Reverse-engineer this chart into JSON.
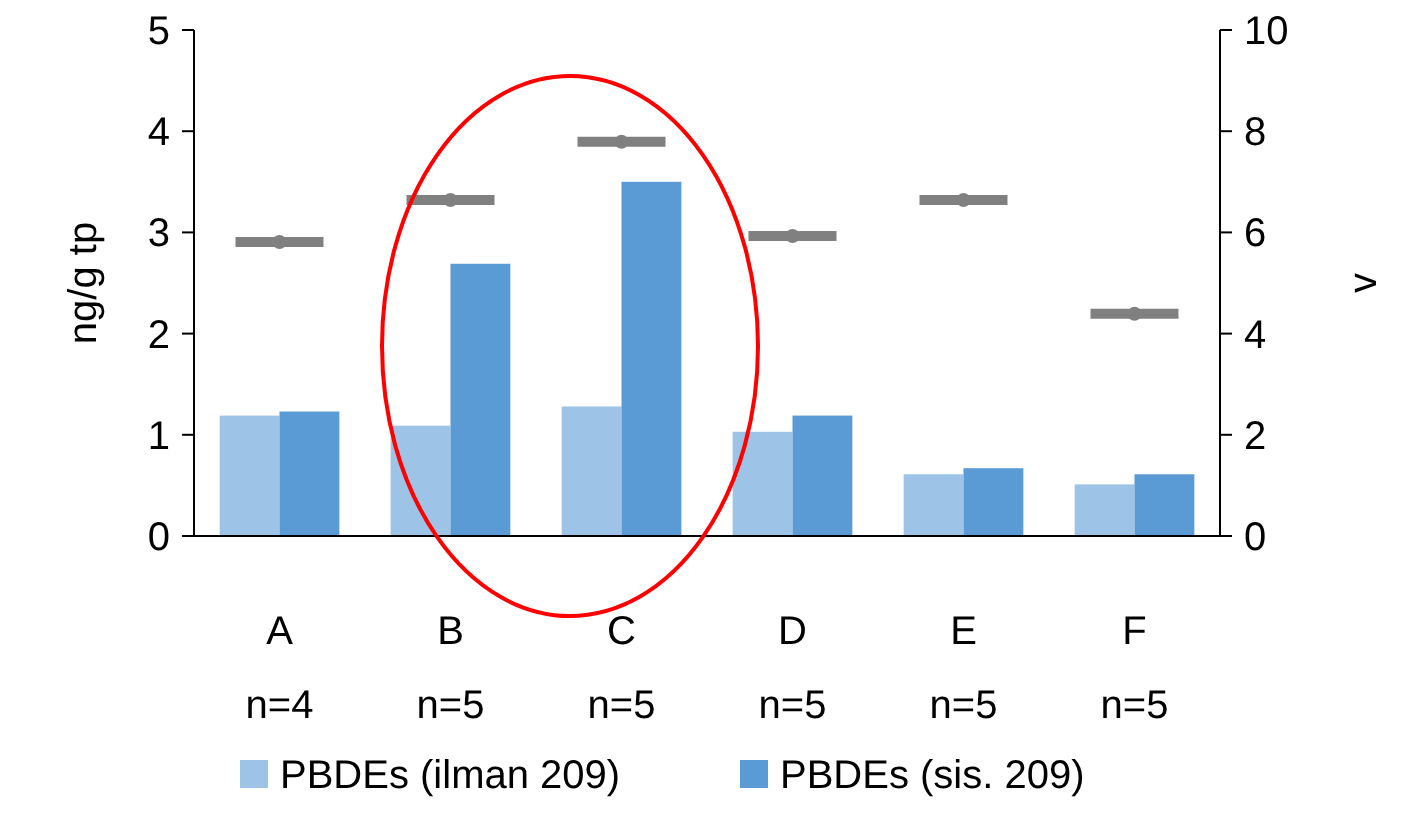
{
  "chart_data": {
    "type": "bar",
    "ylabel": "ng/g tp",
    "y2label": "v",
    "categories": [
      "A\nn=4",
      "B\nn=5",
      "C\nn=5",
      "D\nn=5",
      "E\nn=5",
      "F\nn=5"
    ],
    "series": [
      {
        "name": "PBDEs (ilman 209)",
        "color": "#9dc3e6",
        "values": [
          1.19,
          1.09,
          1.28,
          1.03,
          0.61,
          0.51
        ]
      },
      {
        "name": "PBDEs (sis. 209)",
        "color": "#5b9bd5",
        "values": [
          1.23,
          2.69,
          3.5,
          1.19,
          0.67,
          0.61
        ]
      },
      {
        "type": "scatter",
        "axis": "y2",
        "color": "#808080",
        "values": [
          5.81,
          6.64,
          7.79,
          5.93,
          6.64,
          4.39
        ]
      }
    ],
    "ylim": [
      0,
      5
    ],
    "yticks": [
      0,
      1,
      2,
      3,
      4,
      5
    ],
    "y2lim": [
      0,
      10
    ],
    "y2ticks": [
      0,
      2,
      4,
      6,
      8,
      10
    ],
    "grid": false,
    "legend": "bottom"
  }
}
